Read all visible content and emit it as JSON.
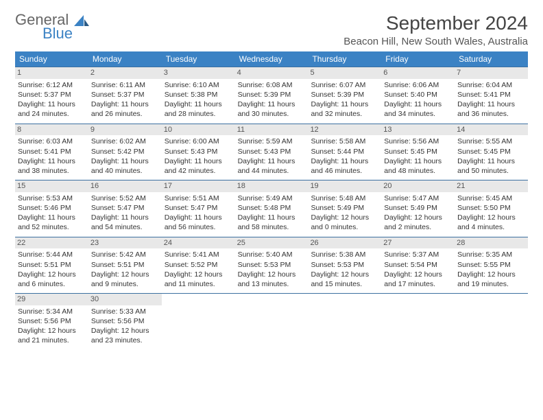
{
  "logo": {
    "text1": "General",
    "text2": "Blue"
  },
  "title": "September 2024",
  "location": "Beacon Hill, New South Wales, Australia",
  "colors": {
    "header_bg": "#3b82c4",
    "border": "#3b6fa0",
    "daynum_bg": "#e8e8e8",
    "logo_gray": "#666666",
    "logo_blue": "#3b82c4"
  },
  "day_headers": [
    "Sunday",
    "Monday",
    "Tuesday",
    "Wednesday",
    "Thursday",
    "Friday",
    "Saturday"
  ],
  "weeks": [
    [
      {
        "n": "1",
        "sr": "Sunrise: 6:12 AM",
        "ss": "Sunset: 5:37 PM",
        "d1": "Daylight: 11 hours",
        "d2": "and 24 minutes."
      },
      {
        "n": "2",
        "sr": "Sunrise: 6:11 AM",
        "ss": "Sunset: 5:37 PM",
        "d1": "Daylight: 11 hours",
        "d2": "and 26 minutes."
      },
      {
        "n": "3",
        "sr": "Sunrise: 6:10 AM",
        "ss": "Sunset: 5:38 PM",
        "d1": "Daylight: 11 hours",
        "d2": "and 28 minutes."
      },
      {
        "n": "4",
        "sr": "Sunrise: 6:08 AM",
        "ss": "Sunset: 5:39 PM",
        "d1": "Daylight: 11 hours",
        "d2": "and 30 minutes."
      },
      {
        "n": "5",
        "sr": "Sunrise: 6:07 AM",
        "ss": "Sunset: 5:39 PM",
        "d1": "Daylight: 11 hours",
        "d2": "and 32 minutes."
      },
      {
        "n": "6",
        "sr": "Sunrise: 6:06 AM",
        "ss": "Sunset: 5:40 PM",
        "d1": "Daylight: 11 hours",
        "d2": "and 34 minutes."
      },
      {
        "n": "7",
        "sr": "Sunrise: 6:04 AM",
        "ss": "Sunset: 5:41 PM",
        "d1": "Daylight: 11 hours",
        "d2": "and 36 minutes."
      }
    ],
    [
      {
        "n": "8",
        "sr": "Sunrise: 6:03 AM",
        "ss": "Sunset: 5:41 PM",
        "d1": "Daylight: 11 hours",
        "d2": "and 38 minutes."
      },
      {
        "n": "9",
        "sr": "Sunrise: 6:02 AM",
        "ss": "Sunset: 5:42 PM",
        "d1": "Daylight: 11 hours",
        "d2": "and 40 minutes."
      },
      {
        "n": "10",
        "sr": "Sunrise: 6:00 AM",
        "ss": "Sunset: 5:43 PM",
        "d1": "Daylight: 11 hours",
        "d2": "and 42 minutes."
      },
      {
        "n": "11",
        "sr": "Sunrise: 5:59 AM",
        "ss": "Sunset: 5:43 PM",
        "d1": "Daylight: 11 hours",
        "d2": "and 44 minutes."
      },
      {
        "n": "12",
        "sr": "Sunrise: 5:58 AM",
        "ss": "Sunset: 5:44 PM",
        "d1": "Daylight: 11 hours",
        "d2": "and 46 minutes."
      },
      {
        "n": "13",
        "sr": "Sunrise: 5:56 AM",
        "ss": "Sunset: 5:45 PM",
        "d1": "Daylight: 11 hours",
        "d2": "and 48 minutes."
      },
      {
        "n": "14",
        "sr": "Sunrise: 5:55 AM",
        "ss": "Sunset: 5:45 PM",
        "d1": "Daylight: 11 hours",
        "d2": "and 50 minutes."
      }
    ],
    [
      {
        "n": "15",
        "sr": "Sunrise: 5:53 AM",
        "ss": "Sunset: 5:46 PM",
        "d1": "Daylight: 11 hours",
        "d2": "and 52 minutes."
      },
      {
        "n": "16",
        "sr": "Sunrise: 5:52 AM",
        "ss": "Sunset: 5:47 PM",
        "d1": "Daylight: 11 hours",
        "d2": "and 54 minutes."
      },
      {
        "n": "17",
        "sr": "Sunrise: 5:51 AM",
        "ss": "Sunset: 5:47 PM",
        "d1": "Daylight: 11 hours",
        "d2": "and 56 minutes."
      },
      {
        "n": "18",
        "sr": "Sunrise: 5:49 AM",
        "ss": "Sunset: 5:48 PM",
        "d1": "Daylight: 11 hours",
        "d2": "and 58 minutes."
      },
      {
        "n": "19",
        "sr": "Sunrise: 5:48 AM",
        "ss": "Sunset: 5:49 PM",
        "d1": "Daylight: 12 hours",
        "d2": "and 0 minutes."
      },
      {
        "n": "20",
        "sr": "Sunrise: 5:47 AM",
        "ss": "Sunset: 5:49 PM",
        "d1": "Daylight: 12 hours",
        "d2": "and 2 minutes."
      },
      {
        "n": "21",
        "sr": "Sunrise: 5:45 AM",
        "ss": "Sunset: 5:50 PM",
        "d1": "Daylight: 12 hours",
        "d2": "and 4 minutes."
      }
    ],
    [
      {
        "n": "22",
        "sr": "Sunrise: 5:44 AM",
        "ss": "Sunset: 5:51 PM",
        "d1": "Daylight: 12 hours",
        "d2": "and 6 minutes."
      },
      {
        "n": "23",
        "sr": "Sunrise: 5:42 AM",
        "ss": "Sunset: 5:51 PM",
        "d1": "Daylight: 12 hours",
        "d2": "and 9 minutes."
      },
      {
        "n": "24",
        "sr": "Sunrise: 5:41 AM",
        "ss": "Sunset: 5:52 PM",
        "d1": "Daylight: 12 hours",
        "d2": "and 11 minutes."
      },
      {
        "n": "25",
        "sr": "Sunrise: 5:40 AM",
        "ss": "Sunset: 5:53 PM",
        "d1": "Daylight: 12 hours",
        "d2": "and 13 minutes."
      },
      {
        "n": "26",
        "sr": "Sunrise: 5:38 AM",
        "ss": "Sunset: 5:53 PM",
        "d1": "Daylight: 12 hours",
        "d2": "and 15 minutes."
      },
      {
        "n": "27",
        "sr": "Sunrise: 5:37 AM",
        "ss": "Sunset: 5:54 PM",
        "d1": "Daylight: 12 hours",
        "d2": "and 17 minutes."
      },
      {
        "n": "28",
        "sr": "Sunrise: 5:35 AM",
        "ss": "Sunset: 5:55 PM",
        "d1": "Daylight: 12 hours",
        "d2": "and 19 minutes."
      }
    ],
    [
      {
        "n": "29",
        "sr": "Sunrise: 5:34 AM",
        "ss": "Sunset: 5:56 PM",
        "d1": "Daylight: 12 hours",
        "d2": "and 21 minutes."
      },
      {
        "n": "30",
        "sr": "Sunrise: 5:33 AM",
        "ss": "Sunset: 5:56 PM",
        "d1": "Daylight: 12 hours",
        "d2": "and 23 minutes."
      },
      null,
      null,
      null,
      null,
      null
    ]
  ]
}
